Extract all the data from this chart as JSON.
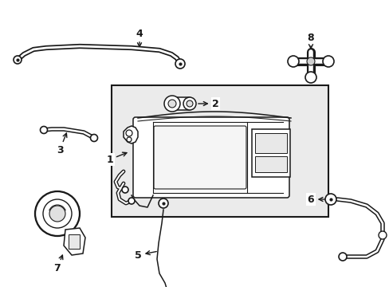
{
  "background_color": "#ffffff",
  "line_color": "#1a1a1a",
  "box_bg": "#ebebeb",
  "figsize": [
    4.89,
    3.6
  ],
  "dpi": 100
}
